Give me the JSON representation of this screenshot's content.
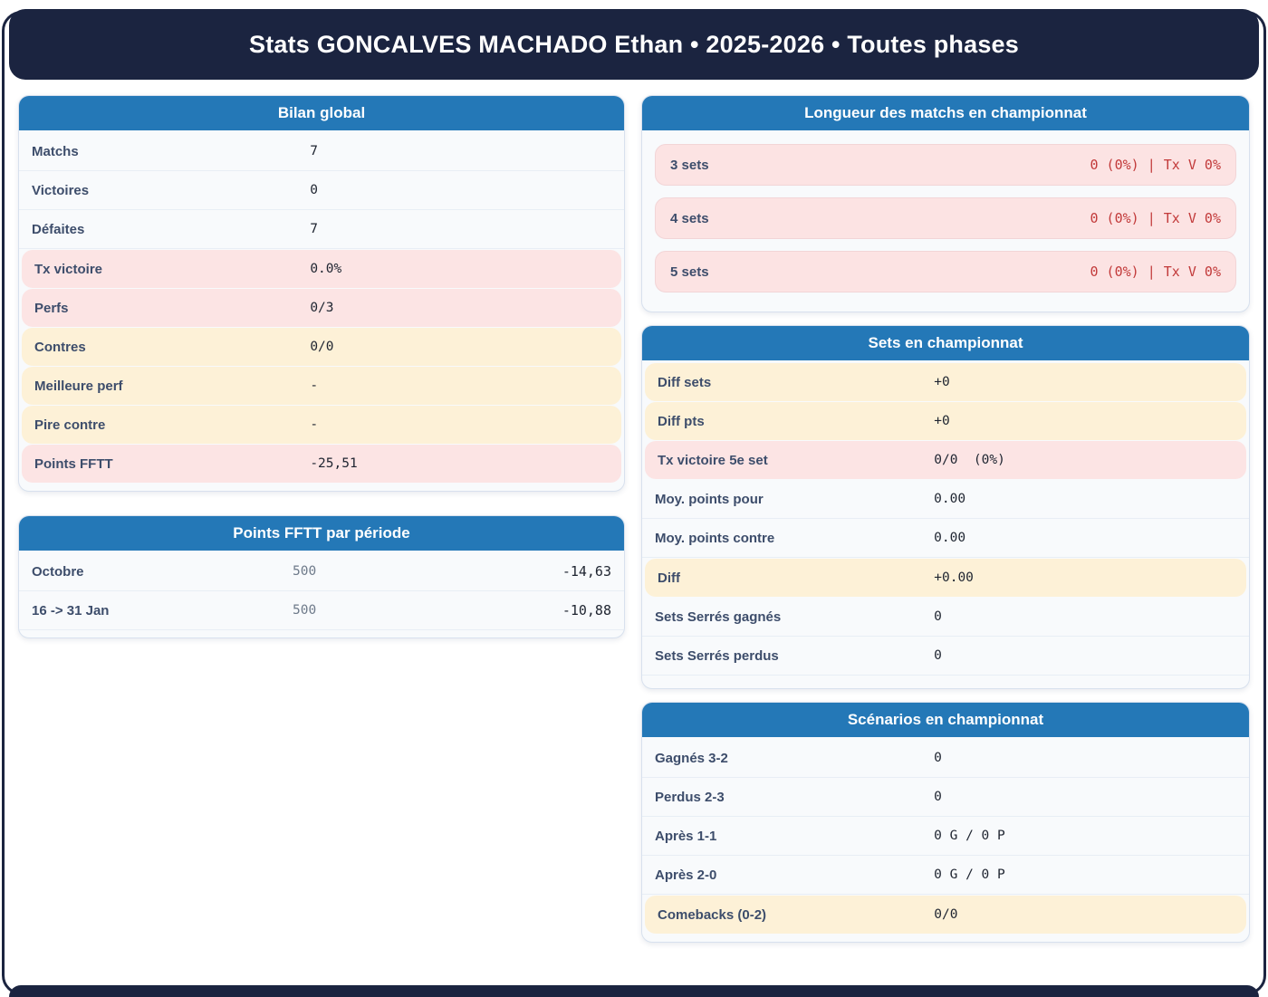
{
  "header": {
    "title": "Stats GONCALVES MACHADO Ethan • 2025-2026 • Toutes phases"
  },
  "colors": {
    "navy": "#1b2440",
    "blue_header": "#2478b7",
    "pink_highlight": "#fce4e4",
    "cream_highlight": "#fdf1d7",
    "red_value": "#c23a3a",
    "label_text": "#3d4d6b"
  },
  "cards": {
    "bilan": {
      "title": "Bilan global",
      "rows": [
        {
          "label": "Matchs",
          "value": "7"
        },
        {
          "label": "Victoires",
          "value": "0"
        },
        {
          "label": "Défaites",
          "value": "7"
        },
        {
          "label": "Tx victoire",
          "value": "0.0%"
        },
        {
          "label": "Perfs",
          "value": "0/3"
        },
        {
          "label": "Contres",
          "value": "0/0"
        },
        {
          "label": "Meilleure perf",
          "value": "-"
        },
        {
          "label": "Pire contre",
          "value": "-"
        },
        {
          "label": "Points FFTT",
          "value": "-25,51"
        }
      ]
    },
    "periodes": {
      "title": "Points FFTT par période",
      "rows": [
        {
          "label": "Octobre",
          "mid": "500",
          "value": "-14,63"
        },
        {
          "label": "16 -> 31 Jan",
          "mid": "500",
          "value": "-10,88"
        }
      ]
    },
    "longueur": {
      "title": "Longueur des matchs en championnat",
      "rows": [
        {
          "label": "3 sets",
          "value": "0 (0%) | Tx V 0%"
        },
        {
          "label": "4 sets",
          "value": "0 (0%) | Tx V 0%"
        },
        {
          "label": "5 sets",
          "value": "0 (0%) | Tx V 0%"
        }
      ]
    },
    "sets": {
      "title": "Sets en championnat",
      "rows": [
        {
          "label": "Diff sets",
          "value": "+0"
        },
        {
          "label": "Diff pts",
          "value": "+0"
        },
        {
          "label": "Tx victoire 5e set",
          "value": "0/0  (0%)"
        },
        {
          "label": "Moy. points pour",
          "value": "0.00"
        },
        {
          "label": "Moy. points contre",
          "value": "0.00"
        },
        {
          "label": "Diff",
          "value": "+0.00"
        },
        {
          "label": "Sets Serrés gagnés",
          "value": "0"
        },
        {
          "label": "Sets Serrés perdus",
          "value": "0"
        }
      ]
    },
    "scenarios": {
      "title": "Scénarios en championnat",
      "rows": [
        {
          "label": "Gagnés 3-2",
          "value": "0"
        },
        {
          "label": "Perdus 2-3",
          "value": "0"
        },
        {
          "label": "Après 1-1",
          "value": "0 G / 0 P"
        },
        {
          "label": "Après 2-0",
          "value": "0 G / 0 P"
        },
        {
          "label": "Comebacks (0-2)",
          "value": "0/0"
        }
      ]
    }
  }
}
